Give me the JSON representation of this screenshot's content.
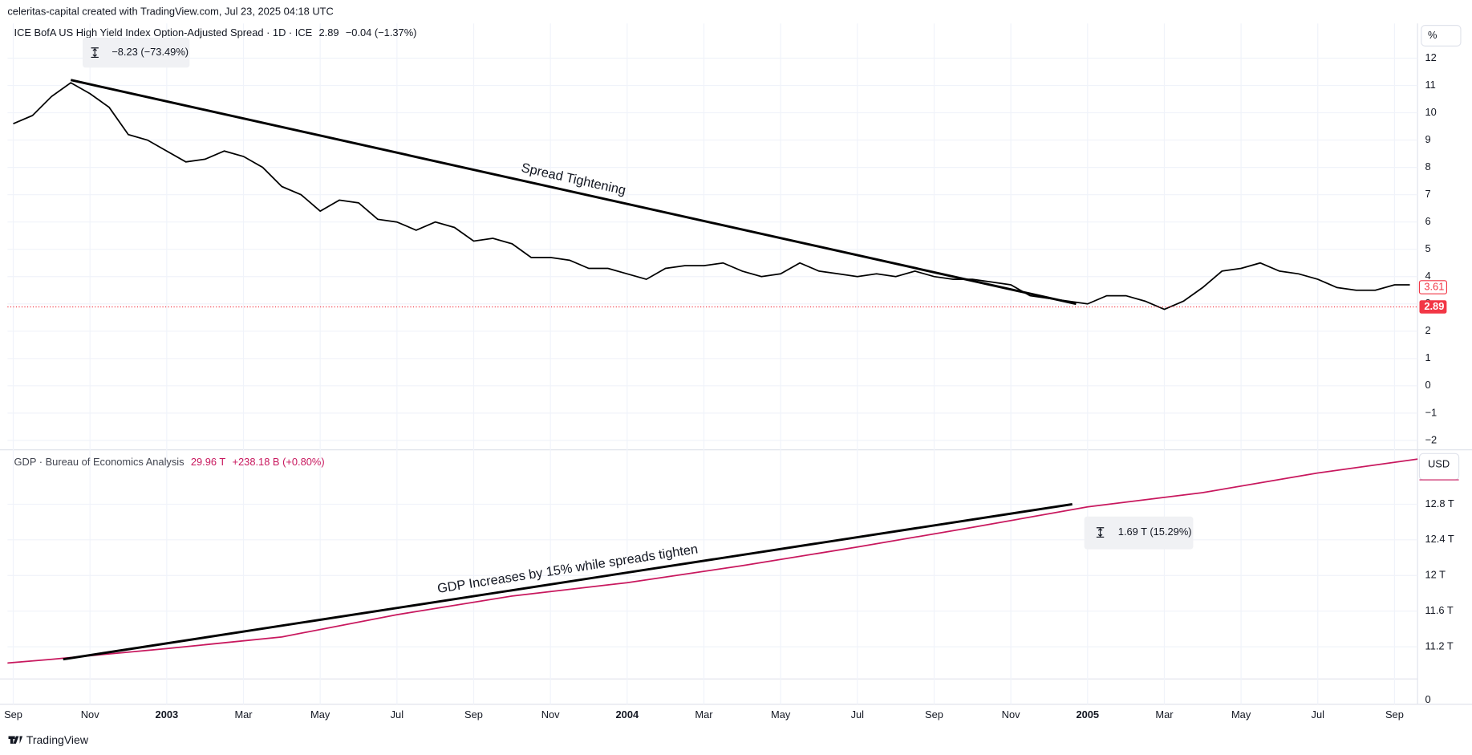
{
  "header": {
    "credit": "celeritas-capital created with TradingView.com, Jul 23, 2025 04:18 UTC"
  },
  "footer": {
    "brand": "TradingView"
  },
  "time_axis": {
    "xlim": [
      -0.15,
      36.6
    ],
    "xticks": [
      {
        "value": 0,
        "label": "Sep"
      },
      {
        "value": 2,
        "label": "Nov"
      },
      {
        "value": 4,
        "label": "2003"
      },
      {
        "value": 6,
        "label": "Mar"
      },
      {
        "value": 8,
        "label": "May"
      },
      {
        "value": 10,
        "label": "Jul"
      },
      {
        "value": 12,
        "label": "Sep"
      },
      {
        "value": 14,
        "label": "Nov"
      },
      {
        "value": 16,
        "label": "2004"
      },
      {
        "value": 18,
        "label": "Mar"
      },
      {
        "value": 20,
        "label": "May"
      },
      {
        "value": 22,
        "label": "Jul"
      },
      {
        "value": 24,
        "label": "Sep"
      },
      {
        "value": 26,
        "label": "Nov"
      },
      {
        "value": 28,
        "label": "2005"
      },
      {
        "value": 30,
        "label": "Mar"
      },
      {
        "value": 32,
        "label": "May"
      },
      {
        "value": 34,
        "label": "Jul"
      },
      {
        "value": 36,
        "label": "Sep"
      }
    ],
    "grid": true
  },
  "chart_data": [
    {
      "type": "line",
      "title": "ICE BofA US High Yield Index Option-Adjusted Spread · 1D · ICE",
      "last_value": 2.89,
      "change": "−0.04 (−1.37%)",
      "marker_value": 3.61,
      "unit": "%",
      "measure": "−8.23 (−73.49%)",
      "annotation": "Spread Tightening",
      "color": "#000000",
      "tag_color": "#f23645",
      "x": [
        0,
        0.5,
        1,
        1.5,
        2,
        2.5,
        3,
        3.5,
        4,
        4.5,
        5,
        5.5,
        6,
        6.5,
        7,
        7.5,
        8,
        8.5,
        9,
        9.5,
        10,
        10.5,
        11,
        11.5,
        12,
        12.5,
        13,
        13.5,
        14,
        14.5,
        15,
        15.5,
        16,
        16.5,
        17,
        17.5,
        18,
        18.5,
        19,
        19.5,
        20,
        20.5,
        21,
        21.5,
        22,
        22.5,
        23,
        23.5,
        24,
        24.5,
        25,
        25.5,
        26,
        26.5,
        27,
        27.5,
        28,
        28.5,
        29,
        29.5,
        30,
        30.5,
        31,
        31.5,
        32,
        32.5,
        33,
        33.5,
        34,
        34.5,
        35,
        35.5,
        36,
        36.4
      ],
      "values": [
        9.6,
        9.9,
        10.6,
        11.1,
        10.7,
        10.2,
        9.2,
        9.0,
        8.6,
        8.2,
        8.3,
        8.6,
        8.4,
        8.0,
        7.3,
        7.0,
        6.4,
        6.8,
        6.7,
        6.1,
        6.0,
        5.7,
        6.0,
        5.8,
        5.3,
        5.4,
        5.2,
        4.7,
        4.7,
        4.6,
        4.3,
        4.3,
        4.1,
        3.9,
        4.3,
        4.4,
        4.4,
        4.5,
        4.2,
        4.0,
        4.1,
        4.5,
        4.2,
        4.1,
        4.0,
        4.1,
        4.0,
        4.2,
        4.0,
        3.9,
        3.9,
        3.8,
        3.7,
        3.3,
        3.2,
        3.1,
        3.0,
        3.3,
        3.3,
        3.1,
        2.8,
        3.1,
        3.6,
        4.2,
        4.3,
        4.5,
        4.2,
        4.1,
        3.9,
        3.6,
        3.5,
        3.5,
        3.7,
        3.7
      ],
      "trendline": {
        "x": [
          1.5,
          27.7
        ],
        "values": [
          11.2,
          3.0
        ]
      },
      "ylim": [
        -2.31,
        13.27
      ],
      "yticks": [
        12,
        11,
        10,
        9,
        8,
        7,
        6,
        5,
        4,
        3,
        2,
        1,
        0,
        {
          "value": -1,
          "label": "−1"
        },
        {
          "value": -2,
          "label": "−2"
        }
      ],
      "grid": true
    },
    {
      "type": "line",
      "title": "GDP · Bureau of Economics Analysis",
      "legend_value": "29.96 T",
      "change": "+238.18 B (+0.80%)",
      "unit": "USD",
      "measure": "1.69 T (15.29%)",
      "annotation": "GDP Increases by 15% while spreads tighten",
      "color": "#c8185e",
      "x": [
        -2,
        1,
        4,
        7,
        10,
        13,
        16,
        19,
        22,
        25,
        28,
        31,
        34,
        37
      ],
      "values": [
        10.95,
        11.06,
        11.18,
        11.31,
        11.56,
        11.77,
        11.92,
        12.11,
        12.32,
        12.54,
        12.77,
        12.93,
        13.15,
        13.33
      ],
      "trendline": {
        "x": [
          1.3,
          27.6
        ],
        "values": [
          11.06,
          12.8
        ]
      },
      "ylim": [
        10.85,
        13.4
      ],
      "yticks": [
        {
          "value": 12.8,
          "label": "12.8 T"
        },
        {
          "value": 12.4,
          "label": "12.4 T"
        },
        {
          "value": 12,
          "label": "12 T"
        },
        {
          "value": 11.6,
          "label": "11.6 T"
        },
        {
          "value": 11.2,
          "label": "11.2 T"
        }
      ],
      "grid": true
    },
    {
      "type": "empty",
      "ylim": [
        -0.2,
        1
      ],
      "yticks": [
        0
      ],
      "grid": false
    }
  ]
}
